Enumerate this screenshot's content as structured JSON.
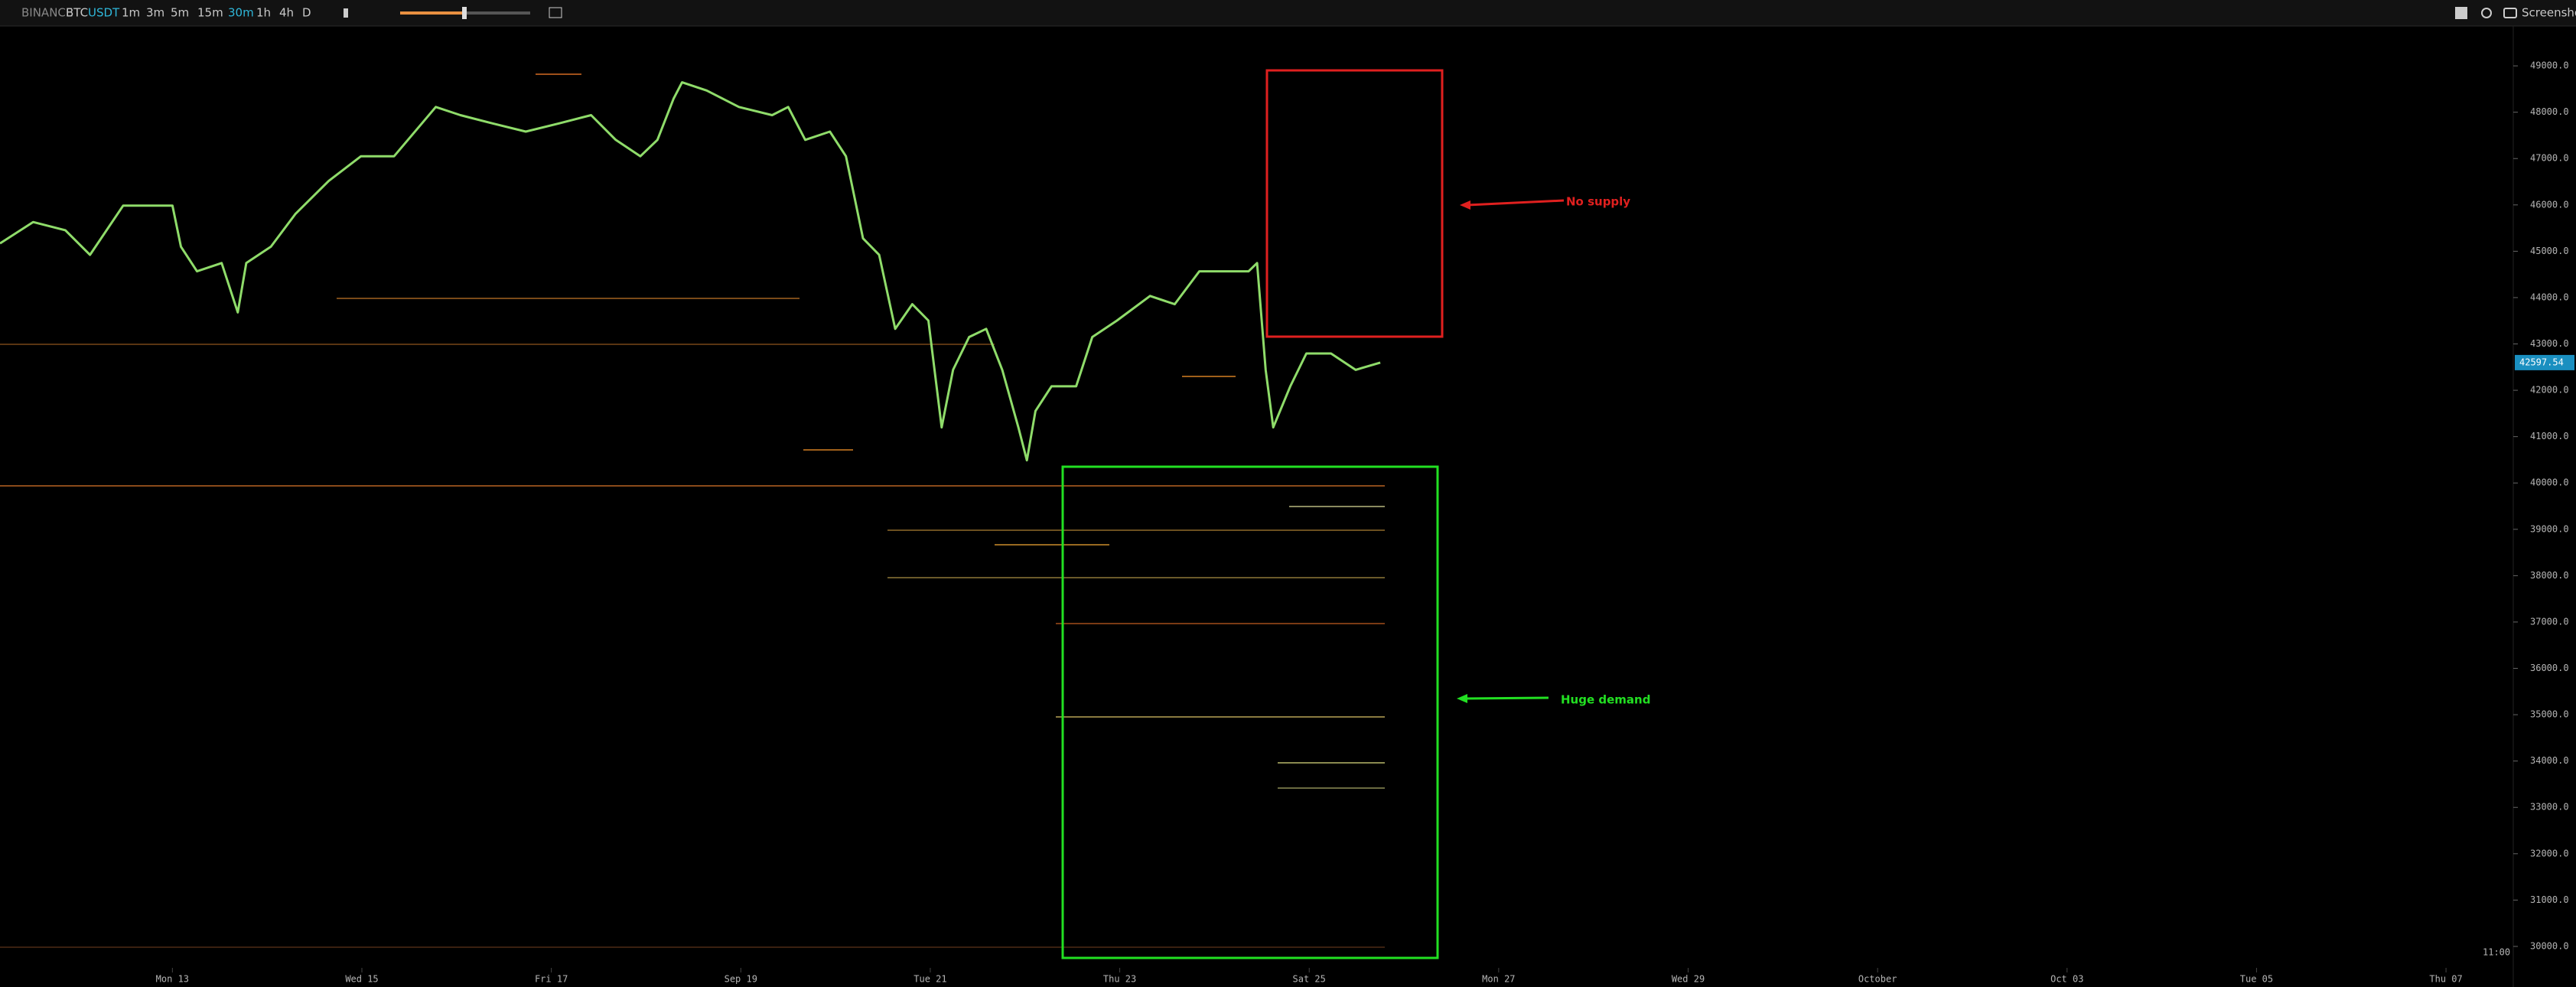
{
  "toolbar": {
    "exchange": "BINANCE",
    "symbol_base": "BTC",
    "symbol_quote": "USDT",
    "intervals": [
      "1m",
      "3m",
      "5m",
      "15m",
      "30m",
      "1h",
      "4h",
      "D"
    ],
    "active_interval_index": 4,
    "screenshot": "Screenshot"
  },
  "chart_data": {
    "type": "line",
    "color": "#8fdc6a",
    "x": [
      11.18,
      11.53,
      11.87,
      12.13,
      12.48,
      12.74,
      13.0,
      13.09,
      13.26,
      13.52,
      13.69,
      13.78,
      14.04,
      14.3,
      14.65,
      14.99,
      15.34,
      15.78,
      16.04,
      16.38,
      16.73,
      17.08,
      17.42,
      17.68,
      17.94,
      18.12,
      18.29,
      18.38,
      18.64,
      18.98,
      19.33,
      19.5,
      19.68,
      19.94,
      20.11,
      20.2,
      20.29,
      20.46,
      20.63,
      20.81,
      20.98,
      21.12,
      21.24,
      21.41,
      21.59,
      21.76,
      21.93,
      22.02,
      22.11,
      22.28,
      22.54,
      22.71,
      22.97,
      23.32,
      23.58,
      23.84,
      24.01,
      24.19,
      24.36,
      24.45,
      24.54,
      24.62,
      24.8,
      24.97,
      25.23,
      25.49,
      25.75
    ],
    "values": [
      45170,
      45631,
      45454,
      44922,
      45986,
      45986,
      45986,
      45099,
      44567,
      44745,
      43681,
      44745,
      45099,
      45809,
      46518,
      47050,
      47050,
      48113,
      47936,
      47759,
      47582,
      47759,
      47936,
      47404,
      47050,
      47404,
      48291,
      48645,
      48468,
      48113,
      47936,
      48113,
      47404,
      47582,
      47050,
      46163,
      45277,
      44922,
      43326,
      43858,
      43504,
      41199,
      42440,
      43149,
      43326,
      42440,
      41199,
      40490,
      41553,
      42085,
      42085,
      43149,
      43504,
      44036,
      43858,
      44567,
      44567,
      44567,
      44567,
      44745,
      42440,
      41199,
      42085,
      42794,
      42794,
      42440,
      42597.54
    ],
    "xlim": [
      11.18,
      37.71
    ],
    "xticks": [
      {
        "value": 13,
        "label": "Mon 13"
      },
      {
        "value": 15,
        "label": "Wed 15"
      },
      {
        "value": 17,
        "label": "Fri 17"
      },
      {
        "value": 19,
        "label": "Sep 19"
      },
      {
        "value": 21,
        "label": "Tue 21"
      },
      {
        "value": 23,
        "label": "Thu 23"
      },
      {
        "value": 25,
        "label": "Sat 25"
      },
      {
        "value": 27,
        "label": "Mon 27"
      },
      {
        "value": 29,
        "label": "Wed 29"
      },
      {
        "value": 31,
        "label": "October"
      },
      {
        "value": 33,
        "label": "Oct 03"
      },
      {
        "value": 35,
        "label": "Tue 05"
      },
      {
        "value": 37,
        "label": "Thu 07"
      }
    ],
    "ylim": [
      29570,
      49860
    ],
    "yticks": [
      {
        "value": 30000,
        "label": "30000.0"
      },
      {
        "value": 31000,
        "label": "31000.0"
      },
      {
        "value": 32000,
        "label": "32000.0"
      },
      {
        "value": 33000,
        "label": "33000.0"
      },
      {
        "value": 34000,
        "label": "34000.0"
      },
      {
        "value": 35000,
        "label": "35000.0"
      },
      {
        "value": 36000,
        "label": "36000.0"
      },
      {
        "value": 37000,
        "label": "37000.0"
      },
      {
        "value": 38000,
        "label": "38000.0"
      },
      {
        "value": 39000,
        "label": "39000.0"
      },
      {
        "value": 40000,
        "label": "40000.0"
      },
      {
        "value": 41000,
        "label": "41000.0"
      },
      {
        "value": 42000,
        "label": "42000.0"
      },
      {
        "value": 43000,
        "label": "43000.0"
      },
      {
        "value": 44000,
        "label": "44000.0"
      },
      {
        "value": 45000,
        "label": "45000.0"
      },
      {
        "value": 46000,
        "label": "46000.0"
      },
      {
        "value": 47000,
        "label": "47000.0"
      },
      {
        "value": 48000,
        "label": "48000.0"
      },
      {
        "value": 49000,
        "label": "49000.0"
      }
    ],
    "annotations": [
      {
        "text": "No supply",
        "color": "#e0201f"
      },
      {
        "text": "Huge demand",
        "color": "#22e022"
      }
    ],
    "time_label": "11:00"
  }
}
